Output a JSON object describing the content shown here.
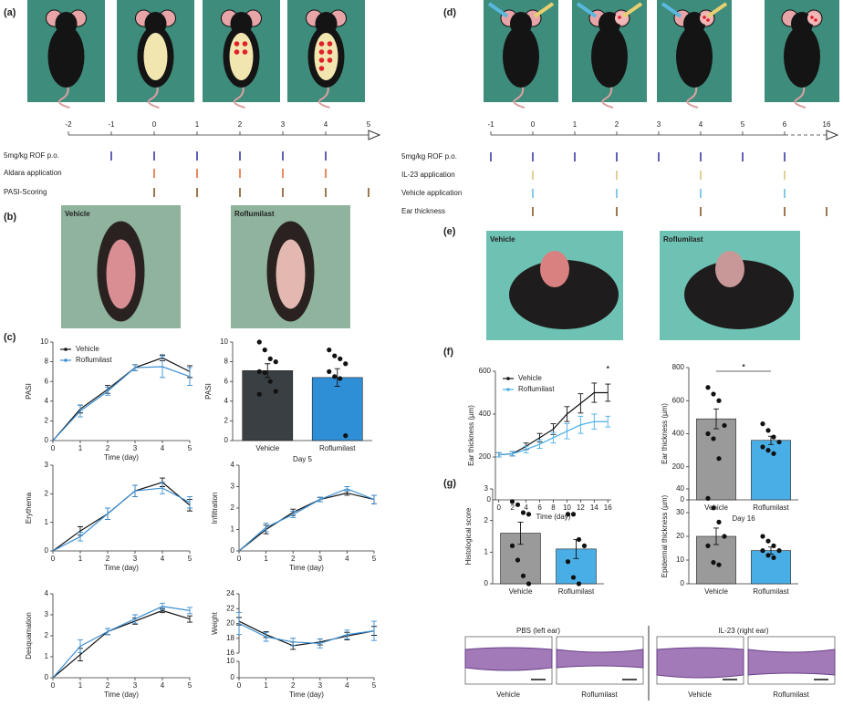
{
  "panels": {
    "a": "(a)",
    "b": "(b)",
    "c": "(c)",
    "d": "(d)",
    "e": "(e)",
    "f": "(f)",
    "g": "(g)"
  },
  "timelines": [
    {
      "ticks": [
        -2,
        -1,
        0,
        1,
        2,
        3,
        4,
        5
      ],
      "rows": [
        {
          "label": "5mg/kg ROF p.o.",
          "color": "#2b2b9a",
          "days": [
            -1,
            0,
            1,
            2,
            3,
            4
          ]
        },
        {
          "label": "Aldara application",
          "color": "#e8602c",
          "days": [
            0,
            1,
            2,
            3,
            4
          ]
        },
        {
          "label": "PASI-Scoring",
          "color": "#7a4a12",
          "days": [
            0,
            1,
            2,
            3,
            4,
            5
          ]
        }
      ]
    },
    {
      "ticks": [
        -1,
        0,
        1,
        2,
        3,
        4,
        5,
        6,
        16
      ],
      "rows": [
        {
          "label": "5mg/kg ROF p.o.",
          "color": "#2b2b9a",
          "days": [
            -1,
            0,
            1,
            2,
            3,
            4,
            5,
            6
          ]
        },
        {
          "label": "IL-23 application",
          "color": "#d9c070",
          "days": [
            0,
            2,
            4,
            6
          ]
        },
        {
          "label": "Vehicle application",
          "color": "#5ab8e0",
          "days": [
            0,
            2,
            4,
            6
          ]
        },
        {
          "label": "Ear thickness",
          "color": "#7a4a12",
          "days": [
            0,
            2,
            4,
            6,
            16
          ]
        }
      ]
    }
  ],
  "photos": {
    "b": [
      "Vehicle",
      "Roflumilast"
    ],
    "e": [
      "Vehicle",
      "Roflumilast"
    ]
  },
  "histology": {
    "groups": [
      "PBS (left ear)",
      "IL-23 (right ear)"
    ],
    "labels": [
      "Vehicle",
      "Roflumilast",
      "Vehicle",
      "Roflumilast"
    ]
  },
  "chart_data": [
    {
      "type": "line",
      "xlabel": "Time (day)",
      "ylabel": "PASI",
      "x": [
        0,
        1,
        2,
        3,
        4,
        5
      ],
      "xlim": [
        0,
        5
      ],
      "xticks": [
        0,
        1,
        2,
        3,
        4,
        5
      ],
      "ylim": [
        0,
        10
      ],
      "yticks": [
        0,
        2,
        4,
        6,
        8,
        10
      ],
      "legend": true,
      "series": [
        {
          "name": "Vehicle",
          "color": "#111111",
          "values": [
            0,
            3.2,
            5.2,
            7.4,
            8.4,
            7.0
          ],
          "errors": [
            0,
            0.4,
            0.4,
            0.3,
            0.3,
            0.6
          ]
        },
        {
          "name": "Roflumilast",
          "color": "#3b8fd4",
          "values": [
            0,
            3.0,
            5.0,
            7.4,
            7.5,
            6.5
          ],
          "errors": [
            0,
            0.6,
            0.4,
            0.3,
            1.1,
            0.9
          ]
        }
      ]
    },
    {
      "type": "bar",
      "xlabel": "Day 5",
      "ylabel": "PASI",
      "categories": [
        "Vehicle",
        "Roflumilast"
      ],
      "values": [
        7.1,
        6.4
      ],
      "errors": [
        0.7,
        0.9
      ],
      "colors": [
        "#3a3f44",
        "#2e8fd6"
      ],
      "ylim": [
        0,
        10
      ],
      "yticks": [
        0,
        2,
        4,
        6,
        8,
        10
      ],
      "points": [
        [
          10,
          9.2,
          8.3,
          8,
          7,
          6.9,
          6,
          5,
          4.7
        ],
        [
          9.2,
          8.6,
          8.3,
          7.8,
          7,
          6.5,
          6.3,
          0.5
        ]
      ]
    },
    {
      "type": "line",
      "xlabel": "Time (day)",
      "ylabel": "Erythema",
      "x": [
        0,
        1,
        2,
        3,
        4,
        5
      ],
      "xlim": [
        0,
        5
      ],
      "xticks": [
        0,
        1,
        2,
        3,
        4,
        5
      ],
      "ylim": [
        0,
        3
      ],
      "yticks": [
        0,
        1,
        2,
        3
      ],
      "series": [
        {
          "name": "Vehicle",
          "color": "#111111",
          "values": [
            0,
            0.7,
            1.3,
            2.1,
            2.4,
            1.6
          ],
          "errors": [
            0,
            0.15,
            0.2,
            0.2,
            0.15,
            0.2
          ]
        },
        {
          "name": "Roflumilast",
          "color": "#3b8fd4",
          "values": [
            0,
            0.5,
            1.3,
            2.1,
            2.2,
            1.7
          ],
          "errors": [
            0,
            0.15,
            0.2,
            0.2,
            0.2,
            0.2
          ]
        }
      ]
    },
    {
      "type": "line",
      "xlabel": "Time (day)",
      "ylabel": "Infiltration",
      "x": [
        0,
        1,
        2,
        3,
        4,
        5
      ],
      "xlim": [
        0,
        5
      ],
      "xticks": [
        0,
        1,
        2,
        3,
        4,
        5
      ],
      "ylim": [
        0,
        4
      ],
      "yticks": [
        0,
        1,
        2,
        3,
        4
      ],
      "series": [
        {
          "name": "Vehicle",
          "color": "#111111",
          "values": [
            0,
            1.0,
            1.8,
            2.4,
            2.7,
            2.4
          ],
          "errors": [
            0,
            0.2,
            0.15,
            0.1,
            0.1,
            0.2
          ]
        },
        {
          "name": "Roflumilast",
          "color": "#3b8fd4",
          "values": [
            0,
            1.1,
            1.7,
            2.4,
            2.9,
            2.4
          ],
          "errors": [
            0,
            0.2,
            0.15,
            0.1,
            0.1,
            0.2
          ]
        }
      ]
    },
    {
      "type": "line",
      "xlabel": "Time (day)",
      "ylabel": "Desquamation",
      "x": [
        0,
        1,
        2,
        3,
        4,
        5
      ],
      "xlim": [
        0,
        5
      ],
      "xticks": [
        0,
        1,
        2,
        3,
        4,
        5
      ],
      "ylim": [
        0,
        4
      ],
      "yticks": [
        0,
        1,
        2,
        3,
        4
      ],
      "series": [
        {
          "name": "Vehicle",
          "color": "#111111",
          "values": [
            0,
            1.1,
            2.2,
            2.7,
            3.2,
            2.8
          ],
          "errors": [
            0,
            0.3,
            0.15,
            0.15,
            0.1,
            0.15
          ]
        },
        {
          "name": "Roflumilast",
          "color": "#3b8fd4",
          "values": [
            0,
            1.5,
            2.2,
            2.8,
            3.4,
            3.2
          ],
          "errors": [
            0,
            0.3,
            0.15,
            0.2,
            0.15,
            0.15
          ]
        }
      ]
    },
    {
      "type": "line",
      "xlabel": "Time (day)",
      "ylabel": "Weight",
      "x": [
        0,
        1,
        2,
        3,
        4,
        5
      ],
      "xlim": [
        0,
        5
      ],
      "xticks": [
        0,
        1,
        2,
        3,
        4,
        5
      ],
      "ylim": [
        16,
        24
      ],
      "yticks": [
        16,
        18,
        20,
        22,
        24
      ],
      "lower_ylim": [
        0,
        10
      ],
      "lower_yticks": [
        0,
        10
      ],
      "series": [
        {
          "name": "Vehicle",
          "color": "#111111",
          "values": [
            20.3,
            18.5,
            17.0,
            17.5,
            18.3,
            19.0
          ],
          "errors": [
            0.5,
            0.4,
            0.5,
            0.4,
            0.5,
            0.6
          ]
        },
        {
          "name": "Roflumilast",
          "color": "#3b8fd4",
          "values": [
            20.0,
            18.2,
            17.5,
            17.3,
            18.5,
            19.0
          ],
          "errors": [
            1.5,
            0.6,
            0.5,
            0.6,
            0.6,
            1.3
          ]
        }
      ]
    },
    {
      "type": "line",
      "xlabel": "Time (day)",
      "ylabel": "Ear thickness (µm)",
      "annotation": "*",
      "legend": true,
      "x": [
        0,
        2,
        4,
        6,
        8,
        10,
        12,
        14,
        16
      ],
      "xlim": [
        -0.5,
        16.5
      ],
      "xticks": [
        0,
        2,
        4,
        6,
        8,
        10,
        12,
        14,
        16
      ],
      "ylim": [
        0,
        600
      ],
      "yticks": [
        0,
        200,
        400,
        600
      ],
      "series": [
        {
          "name": "Vehicle",
          "color": "#111111",
          "values": [
            210,
            215,
            250,
            290,
            330,
            400,
            450,
            500,
            500
          ],
          "errors": [
            10,
            10,
            15,
            20,
            25,
            35,
            45,
            45,
            40
          ]
        },
        {
          "name": "Roflumilast",
          "color": "#4aaee6",
          "values": [
            210,
            215,
            235,
            260,
            290,
            320,
            350,
            365,
            365
          ],
          "errors": [
            10,
            10,
            15,
            20,
            25,
            35,
            40,
            35,
            25
          ]
        }
      ]
    },
    {
      "type": "bar",
      "xlabel": "Day 16",
      "ylabel": "Ear thickness (µm)",
      "annotation": "*",
      "categories": [
        "Vehicle",
        "Roflumilast"
      ],
      "values": [
        490,
        360
      ],
      "errors": [
        60,
        25
      ],
      "colors": [
        "#9a9a9a",
        "#4aaee6"
      ],
      "ylim": [
        0,
        800
      ],
      "yticks": [
        0,
        200,
        400,
        600,
        800
      ],
      "points": [
        [
          680,
          640,
          600,
          450,
          400,
          370,
          250
        ],
        [
          460,
          420,
          380,
          350,
          320,
          300,
          280
        ]
      ]
    },
    {
      "type": "bar",
      "ylabel": "Histological score",
      "categories": [
        "Vehicle",
        "Roflumilast"
      ],
      "values": [
        1.6,
        1.1
      ],
      "errors": [
        0.35,
        0.3
      ],
      "colors": [
        "#9a9a9a",
        "#4aaee6"
      ],
      "ylim": [
        0,
        3
      ],
      "yticks": [
        0,
        1,
        2,
        3
      ],
      "points": [
        [
          2.6,
          2.5,
          2.25,
          2.2,
          1.2,
          0.75,
          0.25,
          0
        ],
        [
          2.2,
          2.2,
          1.4,
          1.2,
          0.7,
          0.2,
          0
        ]
      ]
    },
    {
      "type": "bar",
      "ylabel": "Epidermal thickness (µm)",
      "categories": [
        "Vehicle",
        "Roflumilast"
      ],
      "values": [
        20,
        14
      ],
      "errors": [
        3.5,
        1.5
      ],
      "colors": [
        "#9a9a9a",
        "#4aaee6"
      ],
      "ylim": [
        0,
        40
      ],
      "yticks": [
        0,
        10,
        20,
        30,
        40
      ],
      "points": [
        [
          36,
          32,
          26,
          20,
          16,
          9,
          8
        ],
        [
          20,
          18,
          16,
          14,
          14,
          12,
          11
        ]
      ]
    }
  ]
}
